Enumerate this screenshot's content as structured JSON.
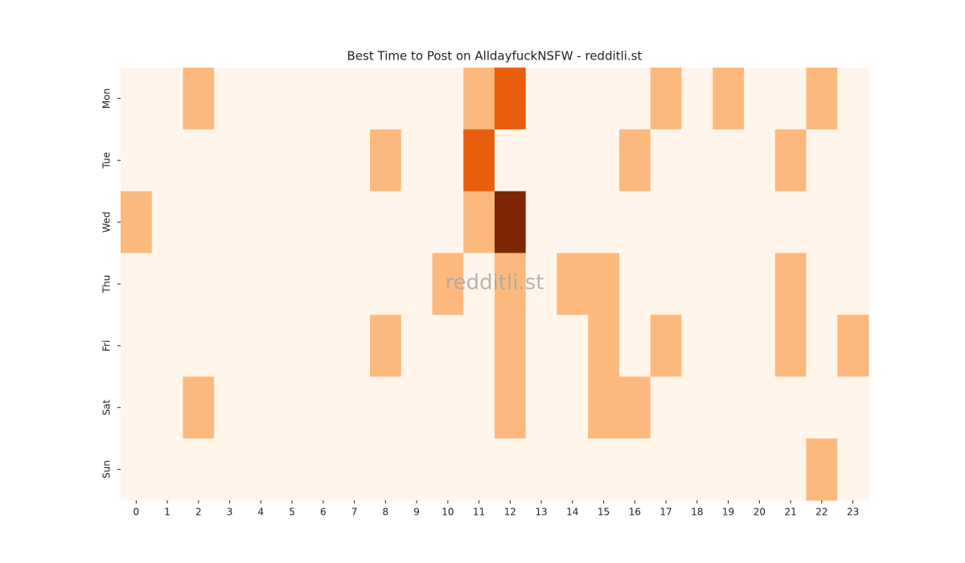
{
  "chart_data": {
    "type": "heatmap",
    "title": "Best Time to Post on AlldayfuckNSFW - redditli.st",
    "watermark": "redditli.st",
    "x_categories": [
      0,
      1,
      2,
      3,
      4,
      5,
      6,
      7,
      8,
      9,
      10,
      11,
      12,
      13,
      14,
      15,
      16,
      17,
      18,
      19,
      20,
      21,
      22,
      23
    ],
    "y_categories": [
      "Mon",
      "Tue",
      "Wed",
      "Thu",
      "Fri",
      "Sat",
      "Sun"
    ],
    "values": [
      [
        0,
        0,
        1,
        0,
        0,
        0,
        0,
        0,
        0,
        0,
        0,
        1,
        2,
        0,
        0,
        0,
        0,
        1,
        0,
        1,
        0,
        0,
        1,
        0
      ],
      [
        0,
        0,
        0,
        0,
        0,
        0,
        0,
        0,
        1,
        0,
        0,
        2,
        0,
        0,
        0,
        0,
        1,
        0,
        0,
        0,
        0,
        1,
        0,
        0
      ],
      [
        1,
        0,
        0,
        0,
        0,
        0,
        0,
        0,
        0,
        0,
        0,
        1,
        3,
        0,
        0,
        0,
        0,
        0,
        0,
        0,
        0,
        0,
        0,
        0
      ],
      [
        0,
        0,
        0,
        0,
        0,
        0,
        0,
        0,
        0,
        0,
        1,
        0,
        1,
        0,
        1,
        1,
        0,
        0,
        0,
        0,
        0,
        1,
        0,
        0
      ],
      [
        0,
        0,
        0,
        0,
        0,
        0,
        0,
        0,
        1,
        0,
        0,
        0,
        1,
        0,
        0,
        1,
        0,
        1,
        0,
        0,
        0,
        1,
        0,
        1
      ],
      [
        0,
        0,
        1,
        0,
        0,
        0,
        0,
        0,
        0,
        0,
        0,
        0,
        1,
        0,
        0,
        1,
        1,
        0,
        0,
        0,
        0,
        0,
        0,
        0
      ],
      [
        0,
        0,
        0,
        0,
        0,
        0,
        0,
        0,
        0,
        0,
        0,
        0,
        0,
        0,
        0,
        0,
        0,
        0,
        0,
        0,
        0,
        0,
        1,
        0
      ]
    ],
    "zlim": [
      0,
      3
    ],
    "colorscale": [
      "#fff5eb",
      "#fdb97d",
      "#e95e0d",
      "#7f2704"
    ]
  }
}
